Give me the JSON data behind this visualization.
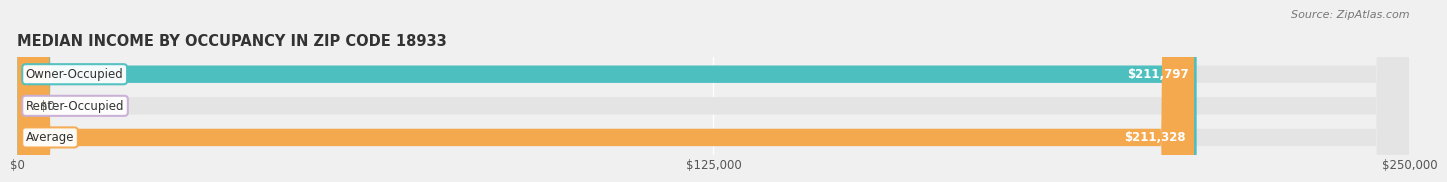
{
  "title": "MEDIAN INCOME BY OCCUPANCY IN ZIP CODE 18933",
  "source": "Source: ZipAtlas.com",
  "categories": [
    "Owner-Occupied",
    "Renter-Occupied",
    "Average"
  ],
  "values": [
    211797,
    0,
    211328
  ],
  "bar_colors": [
    "#4dbfbf",
    "#c9aed6",
    "#f5a94e"
  ],
  "bar_labels": [
    "$211,797",
    "$0",
    "$211,328"
  ],
  "xlim": [
    0,
    250000
  ],
  "xticks": [
    0,
    125000,
    250000
  ],
  "xtick_labels": [
    "$0",
    "$125,000",
    "$250,000"
  ],
  "background_color": "#f0f0f0",
  "bar_bg_color": "#e4e4e4",
  "title_fontsize": 10.5,
  "label_fontsize": 8.5,
  "tick_fontsize": 8.5,
  "source_fontsize": 8
}
